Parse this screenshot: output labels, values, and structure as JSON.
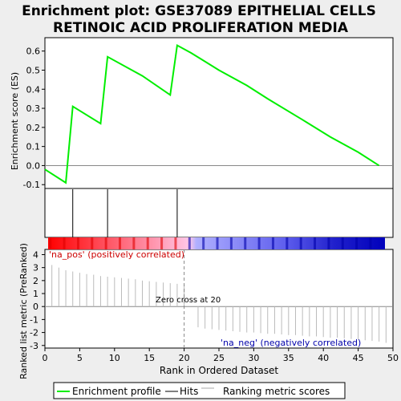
{
  "title": {
    "line1": "Enrichment plot: GSE37089 EPITHELIAL CELLS",
    "line2": "RETINOIC ACID PROLIFERATION MEDIA"
  },
  "colors": {
    "es_line": "#00ee00",
    "hits": "#000000",
    "metric": "#bbbbbb",
    "pos": "#ff0000",
    "neg": "#0000cc",
    "pos_label": "#cc0000",
    "neg_label": "#0000aa"
  },
  "chart_data": {
    "type": "line",
    "xlabel": "Rank in Ordered Dataset",
    "xlim": [
      0,
      50
    ],
    "x_ticks": [
      "0",
      "5",
      "10",
      "15",
      "20",
      "25",
      "30",
      "35",
      "40",
      "45",
      "50"
    ],
    "es_panel": {
      "ylabel": "Enrichment score (ES)",
      "ylim": [
        -0.12,
        0.67
      ],
      "y_ticks": [
        "-0.1",
        "0.0",
        "0.1",
        "0.2",
        "0.3",
        "0.4",
        "0.5",
        "0.6"
      ],
      "series": [
        {
          "name": "Enrichment profile",
          "x": [
            0,
            3,
            4,
            8,
            9,
            14,
            18,
            19,
            21,
            25,
            29,
            32,
            37,
            41,
            45,
            48
          ],
          "y": [
            -0.02,
            -0.09,
            0.31,
            0.22,
            0.57,
            0.47,
            0.37,
            0.63,
            0.59,
            0.5,
            0.42,
            0.35,
            0.24,
            0.15,
            0.07,
            0.0
          ]
        }
      ],
      "hits": [
        4,
        9,
        19
      ]
    },
    "metric_panel": {
      "ylabel": "Ranked list metric (PreRanked)",
      "ylim": [
        -3.2,
        4.4
      ],
      "y_ticks": [
        "-3",
        "-2",
        "-1",
        "0",
        "1",
        "2",
        "3",
        "4"
      ],
      "values": [
        3.2,
        3.0,
        2.8,
        2.7,
        2.6,
        2.5,
        2.45,
        2.35,
        2.3,
        2.25,
        2.2,
        2.15,
        2.1,
        2.0,
        1.95,
        1.9,
        1.85,
        1.8,
        1.75,
        1.7,
        0.0,
        -1.6,
        -1.7,
        -1.75,
        -1.8,
        -1.85,
        -1.9,
        -1.95,
        -2.0,
        -2.0,
        -2.05,
        -2.1,
        -2.1,
        -2.15,
        -2.2,
        -2.2,
        -2.25,
        -2.3,
        -2.3,
        -2.35,
        -2.4,
        -2.4,
        -2.45,
        -2.5,
        -2.55,
        -2.6,
        -2.65,
        -2.7,
        -2.8
      ],
      "zero_cross": 20,
      "zero_cross_label": "Zero cross at 20",
      "pos_label": "'na_pos' (positively correlated)",
      "neg_label": "'na_neg' (negatively correlated)"
    },
    "legend": {
      "placement": "bottom",
      "entries": [
        "Enrichment profile",
        "Hits",
        "Ranking metric scores"
      ]
    }
  }
}
